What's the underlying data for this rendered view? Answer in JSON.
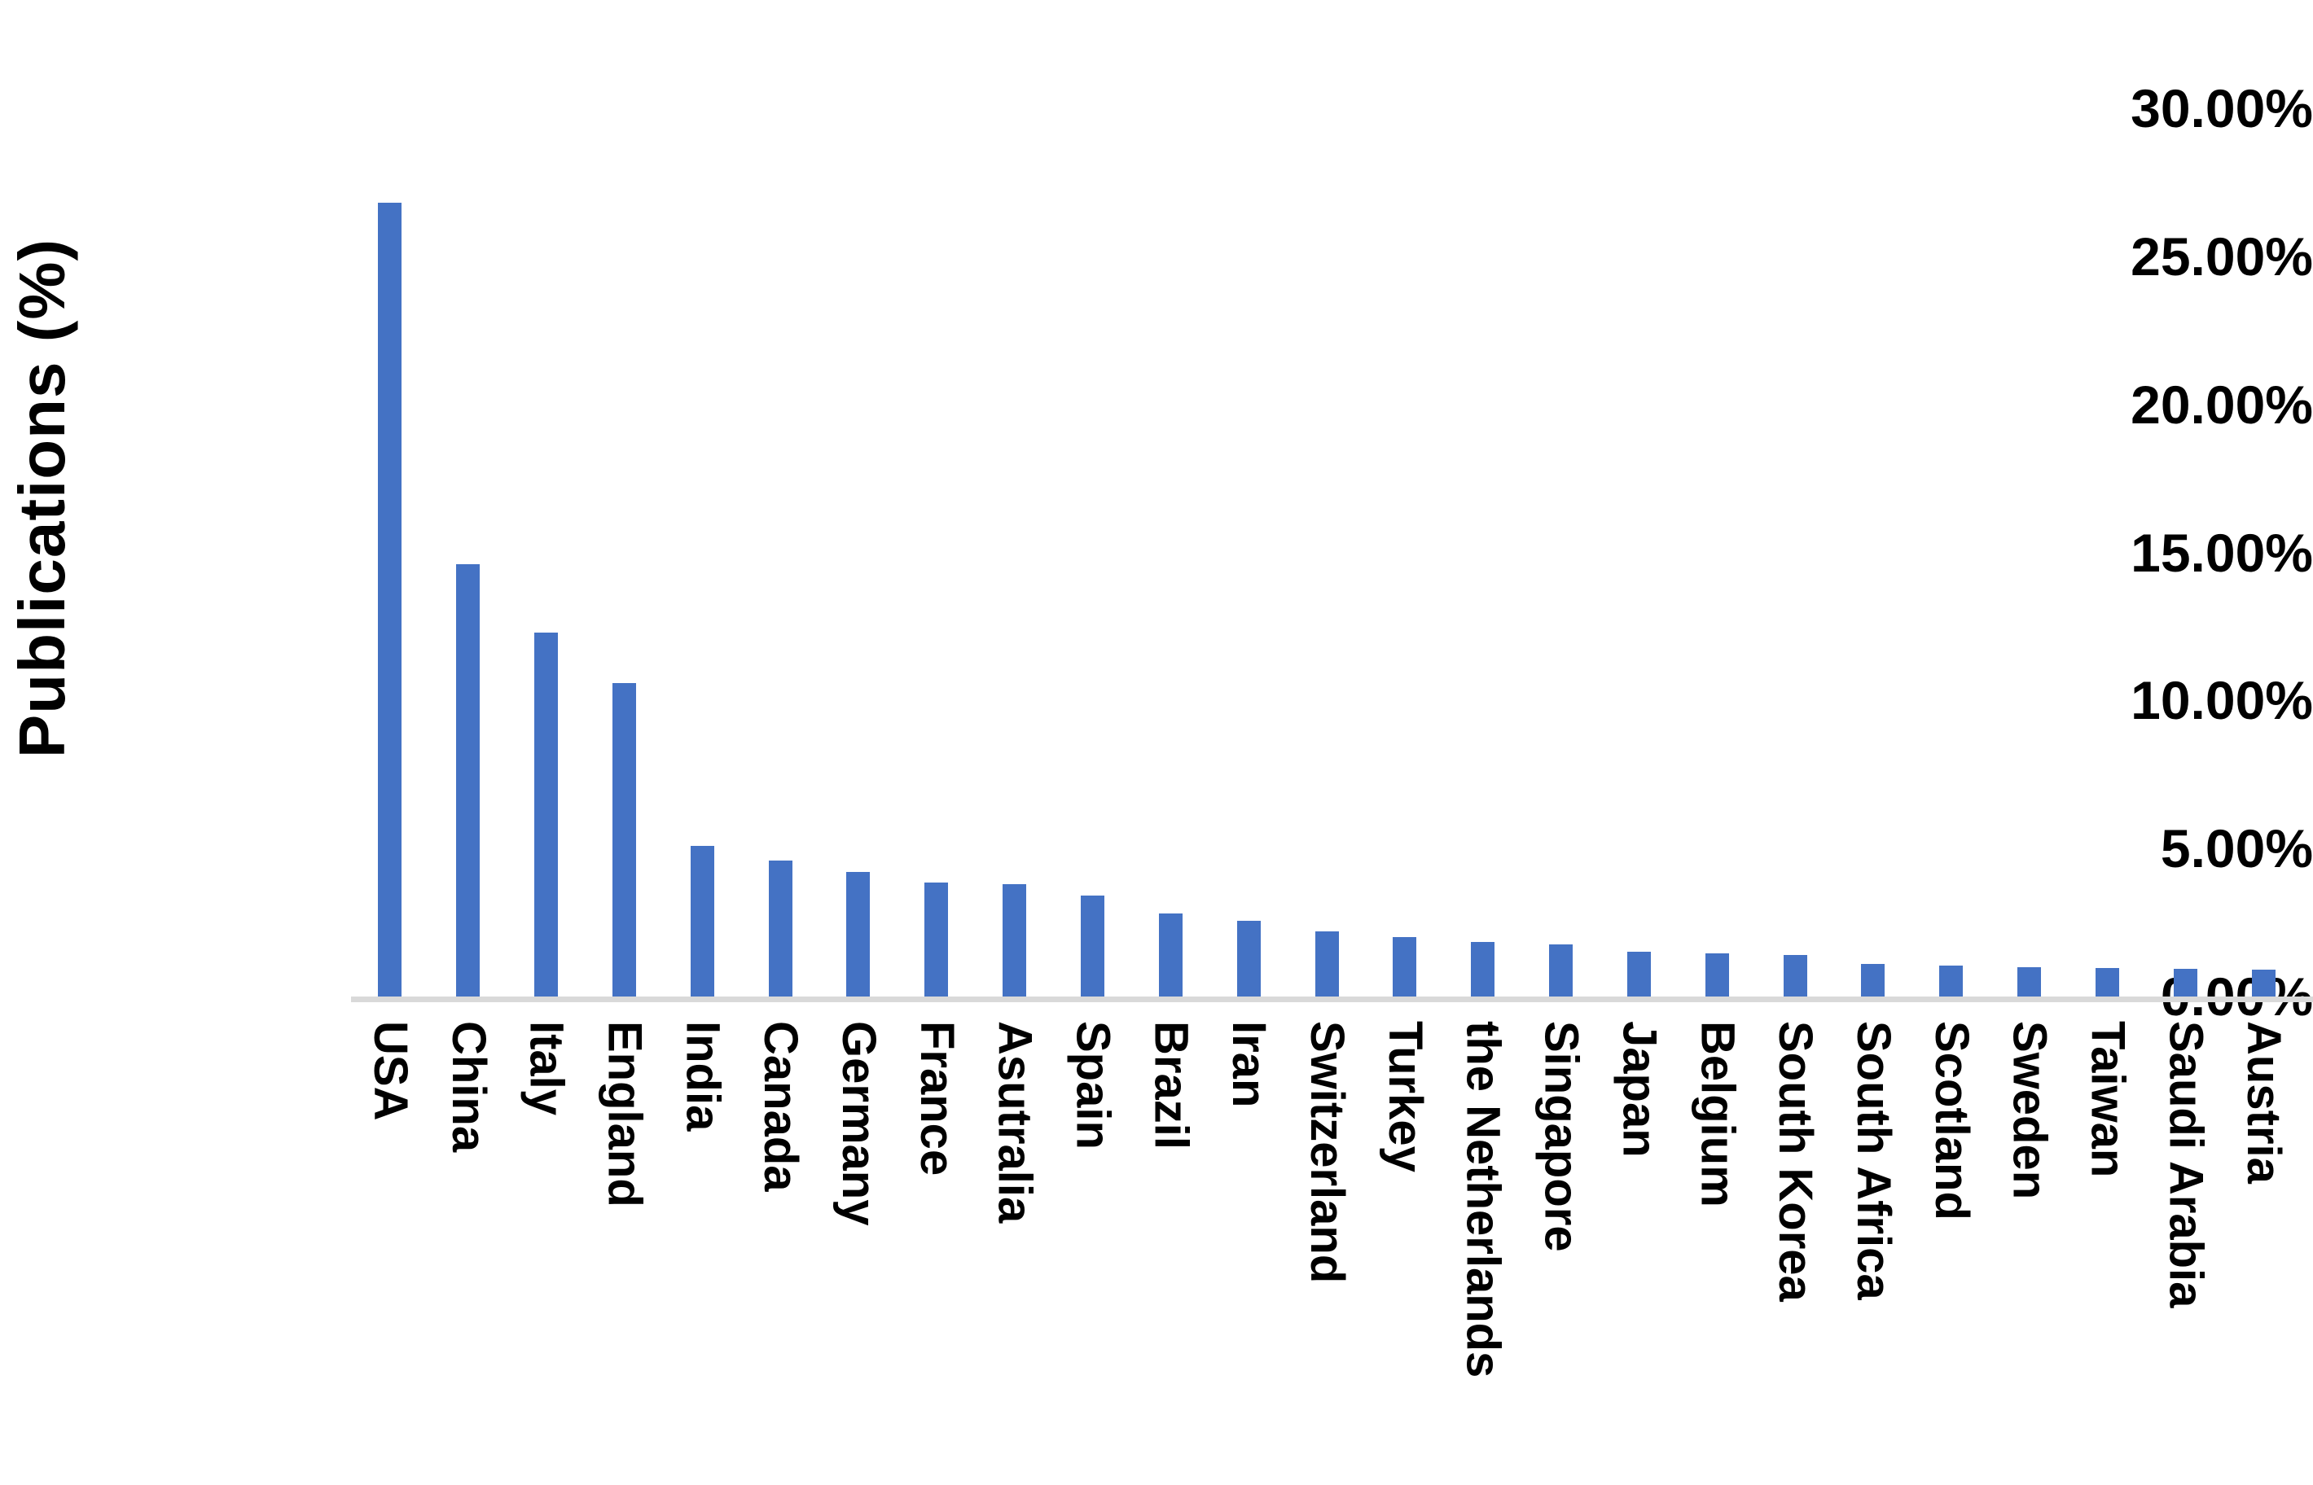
{
  "chart_data": {
    "type": "bar",
    "title": "",
    "xlabel": "",
    "ylabel": "Publications (%)",
    "categories": [
      "USA",
      "China",
      "Italy",
      "England",
      "India",
      "Canada",
      "Germany",
      "France",
      "Asutralia",
      "Spain",
      "Brazil",
      "Iran",
      "Switzerland",
      "Turkey",
      "the Netherlands",
      "Singapore",
      "Japan",
      "Belgium",
      "South Korea",
      "South Africa",
      "Scotland",
      "Sweden",
      "Taiwan",
      "Saudi Arabia",
      "Austria"
    ],
    "values": [
      26.8,
      14.6,
      12.3,
      10.6,
      5.1,
      4.6,
      4.2,
      3.85,
      3.8,
      3.4,
      2.8,
      2.55,
      2.2,
      2.0,
      1.85,
      1.75,
      1.5,
      1.45,
      1.4,
      1.1,
      1.05,
      1.0,
      0.95,
      0.93,
      0.9
    ],
    "ylim": [
      0,
      30
    ],
    "ytick_values": [
      0,
      5,
      10,
      15,
      20,
      25,
      30
    ],
    "ytick_labels": [
      "0.00%",
      "5.00%",
      "10.00%",
      "15.00%",
      "20.00%",
      "25.00%",
      "30.00%"
    ],
    "grid": false,
    "legend_position": "none",
    "bar_color": "#4472C4",
    "axis_line_color": "#D9D9D9",
    "text_color": "#000000"
  }
}
